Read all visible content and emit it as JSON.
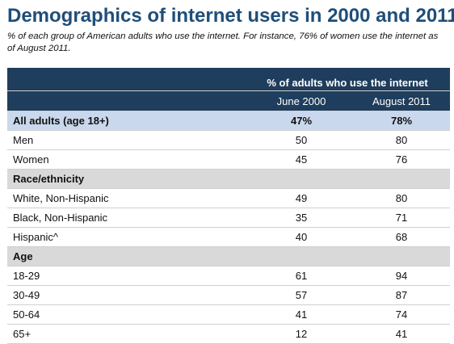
{
  "chart_data": {
    "type": "table",
    "title": "Demographics of internet users in 2000 and 2011",
    "subtitle": "% of each group of American adults who use the internet. For instance, 76% of women use the internet as of August 2011.",
    "column_group_header": "% of adults who use the internet",
    "columns": [
      "June 2000",
      "August 2011"
    ],
    "rows": [
      {
        "kind": "total",
        "label": "All adults (age 18+)",
        "values": [
          "47%",
          "78%"
        ]
      },
      {
        "kind": "row",
        "label": "Men",
        "values": [
          "50",
          "80"
        ]
      },
      {
        "kind": "row",
        "label": "Women",
        "values": [
          "45",
          "76"
        ]
      },
      {
        "kind": "section",
        "label": "Race/ethnicity",
        "values": [
          "",
          ""
        ]
      },
      {
        "kind": "row",
        "label": "White, Non-Hispanic",
        "values": [
          "49",
          "80"
        ]
      },
      {
        "kind": "row",
        "label": "Black, Non-Hispanic",
        "values": [
          "35",
          "71"
        ]
      },
      {
        "kind": "row",
        "label": "Hispanic^",
        "values": [
          "40",
          "68"
        ]
      },
      {
        "kind": "section",
        "label": "Age",
        "values": [
          "",
          ""
        ]
      },
      {
        "kind": "row",
        "label": "18-29",
        "values": [
          "61",
          "94"
        ]
      },
      {
        "kind": "row",
        "label": "30-49",
        "values": [
          "57",
          "87"
        ]
      },
      {
        "kind": "row",
        "label": "50-64",
        "values": [
          "41",
          "74"
        ]
      },
      {
        "kind": "row",
        "label": "65+",
        "values": [
          "12",
          "41"
        ]
      }
    ]
  },
  "colors": {
    "title": "#1f4e79",
    "header_bg": "#1f3d5c",
    "total_row_bg": "#c9d8ec",
    "section_row_bg": "#d9d9d9"
  }
}
